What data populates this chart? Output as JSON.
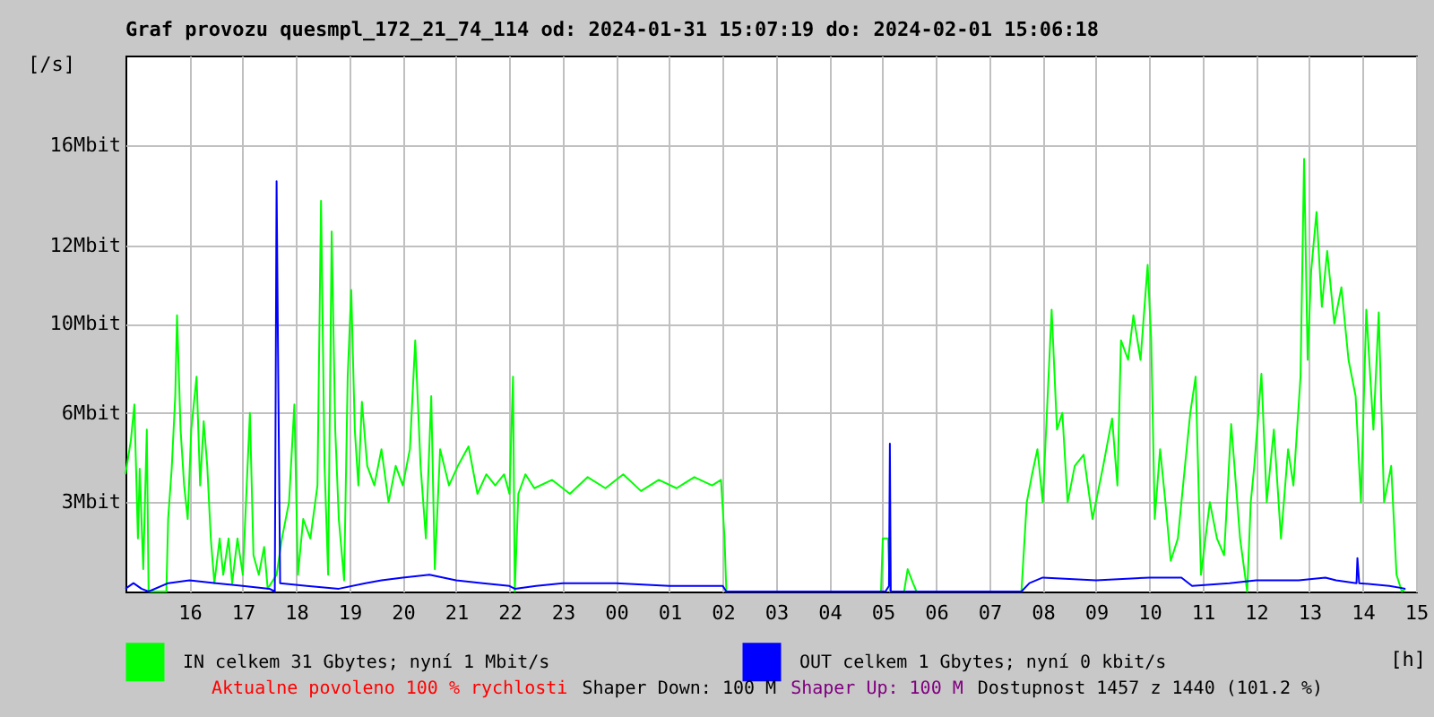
{
  "chart_data": {
    "type": "line",
    "title": "Graf provozu quesmpl_172_21_74_114 od: 2024-01-31 15:07:19 do: 2024-02-01 15:06:18",
    "xlabel": "[h]",
    "ylabel": "[/s]",
    "xlim": [
      "2024-01-31T14:48",
      "2024-02-01T15:00"
    ],
    "xticks": [
      {
        "value": "2024-01-31T16:00",
        "label": "16"
      },
      {
        "value": "2024-01-31T17:00",
        "label": "17"
      },
      {
        "value": "2024-01-31T18:00",
        "label": "18"
      },
      {
        "value": "2024-01-31T19:00",
        "label": "19"
      },
      {
        "value": "2024-01-31T20:00",
        "label": "20"
      },
      {
        "value": "2024-01-31T21:00",
        "label": "21"
      },
      {
        "value": "2024-01-31T22:00",
        "label": "22"
      },
      {
        "value": "2024-01-31T23:00",
        "label": "23"
      },
      {
        "value": "2024-02-01T00:00",
        "label": "00"
      },
      {
        "value": "2024-02-01T01:00",
        "label": "01"
      },
      {
        "value": "2024-02-01T02:00",
        "label": "02"
      },
      {
        "value": "2024-02-01T03:00",
        "label": "03"
      },
      {
        "value": "2024-02-01T04:00",
        "label": "04"
      },
      {
        "value": "2024-02-01T05:00",
        "label": "05"
      },
      {
        "value": "2024-02-01T06:00",
        "label": "06"
      },
      {
        "value": "2024-02-01T07:00",
        "label": "07"
      },
      {
        "value": "2024-02-01T08:00",
        "label": "08"
      },
      {
        "value": "2024-02-01T09:00",
        "label": "09"
      },
      {
        "value": "2024-02-01T10:00",
        "label": "10"
      },
      {
        "value": "2024-02-01T11:00",
        "label": "11"
      },
      {
        "value": "2024-02-01T12:00",
        "label": "12"
      },
      {
        "value": "2024-02-01T13:00",
        "label": "13"
      },
      {
        "value": "2024-02-01T14:00",
        "label": "14"
      },
      {
        "value": "2024-02-01T15:00",
        "label": "15"
      }
    ],
    "ylim": [
      0,
      19.2
    ],
    "yticks": [
      {
        "value": 3.2,
        "label": "3Mbit"
      },
      {
        "value": 6.4,
        "label": "6Mbit"
      },
      {
        "value": 9.6,
        "label": "10Mbit"
      },
      {
        "value": 12.4,
        "label": "12Mbit"
      },
      {
        "value": 16,
        "label": "16Mbit"
      }
    ],
    "grid": true,
    "legend": "bottom",
    "annotations": [
      "Aktualne povoleno 100 % rychlosti",
      "Shaper Down: 100 M",
      "Shaper Up: 100 M",
      "Dostupnost 1457 z 1440 (101.2 %)"
    ],
    "series": [
      {
        "name": "IN celkem 31 Gbytes; nyní 1 Mbit/s",
        "color": "#00ff00",
        "x": [
          "2024-01-31T14:48",
          "2024-01-31T14:54",
          "2024-01-31T14:58",
          "2024-01-31T15:02",
          "2024-01-31T15:04",
          "2024-01-31T15:08",
          "2024-01-31T15:12",
          "2024-01-31T15:14",
          "2024-01-31T15:34",
          "2024-01-31T15:36",
          "2024-01-31T15:40",
          "2024-01-31T15:44",
          "2024-01-31T15:46",
          "2024-01-31T15:50",
          "2024-01-31T15:54",
          "2024-01-31T15:58",
          "2024-01-31T16:02",
          "2024-01-31T16:08",
          "2024-01-31T16:12",
          "2024-01-31T16:16",
          "2024-01-31T16:20",
          "2024-01-31T16:24",
          "2024-01-31T16:28",
          "2024-01-31T16:34",
          "2024-01-31T16:38",
          "2024-01-31T16:44",
          "2024-01-31T16:48",
          "2024-01-31T16:54",
          "2024-01-31T17:00",
          "2024-01-31T17:08",
          "2024-01-31T17:12",
          "2024-01-31T17:18",
          "2024-01-31T17:24",
          "2024-01-31T17:28",
          "2024-01-31T17:38",
          "2024-01-31T17:44",
          "2024-01-31T17:52",
          "2024-01-31T17:58",
          "2024-01-31T18:02",
          "2024-01-31T18:08",
          "2024-01-31T18:16",
          "2024-01-31T18:24",
          "2024-01-31T18:28",
          "2024-01-31T18:32",
          "2024-01-31T18:36",
          "2024-01-31T18:40",
          "2024-01-31T18:44",
          "2024-01-31T18:48",
          "2024-01-31T18:54",
          "2024-01-31T18:58",
          "2024-01-31T19:02",
          "2024-01-31T19:06",
          "2024-01-31T19:10",
          "2024-01-31T19:14",
          "2024-01-31T19:20",
          "2024-01-31T19:28",
          "2024-01-31T19:36",
          "2024-01-31T19:44",
          "2024-01-31T19:52",
          "2024-01-31T20:00",
          "2024-01-31T20:08",
          "2024-01-31T20:14",
          "2024-01-31T20:20",
          "2024-01-31T20:26",
          "2024-01-31T20:32",
          "2024-01-31T20:36",
          "2024-01-31T20:42",
          "2024-01-31T20:52",
          "2024-01-31T21:02",
          "2024-01-31T21:14",
          "2024-01-31T21:24",
          "2024-01-31T21:34",
          "2024-01-31T21:44",
          "2024-01-31T21:54",
          "2024-01-31T22:00",
          "2024-01-31T22:04",
          "2024-01-31T22:06",
          "2024-01-31T22:10",
          "2024-01-31T22:18",
          "2024-01-31T22:28",
          "2024-01-31T22:48",
          "2024-01-31T23:08",
          "2024-01-31T23:28",
          "2024-01-31T23:48",
          "2024-02-01T00:08",
          "2024-02-01T00:28",
          "2024-02-01T00:48",
          "2024-02-01T01:08",
          "2024-02-01T01:28",
          "2024-02-01T01:48",
          "2024-02-01T01:58",
          "2024-02-01T02:02",
          "2024-02-01T02:04",
          "2024-02-01T04:58",
          "2024-02-01T05:00",
          "2024-02-01T05:06",
          "2024-02-01T05:08",
          "2024-02-01T05:24",
          "2024-02-01T05:28",
          "2024-02-01T05:34",
          "2024-02-01T05:38",
          "2024-02-01T07:36",
          "2024-02-01T07:42",
          "2024-02-01T07:48",
          "2024-02-01T07:54",
          "2024-02-01T08:00",
          "2024-02-01T08:10",
          "2024-02-01T08:16",
          "2024-02-01T08:22",
          "2024-02-01T08:28",
          "2024-02-01T08:36",
          "2024-02-01T08:46",
          "2024-02-01T08:56",
          "2024-02-01T09:08",
          "2024-02-01T09:18",
          "2024-02-01T09:24",
          "2024-02-01T09:28",
          "2024-02-01T09:36",
          "2024-02-01T09:42",
          "2024-02-01T09:50",
          "2024-02-01T09:58",
          "2024-02-01T10:02",
          "2024-02-01T10:06",
          "2024-02-01T10:12",
          "2024-02-01T10:18",
          "2024-02-01T10:24",
          "2024-02-01T10:32",
          "2024-02-01T10:40",
          "2024-02-01T10:46",
          "2024-02-01T10:52",
          "2024-02-01T10:58",
          "2024-02-01T11:08",
          "2024-02-01T11:16",
          "2024-02-01T11:24",
          "2024-02-01T11:32",
          "2024-02-01T11:42",
          "2024-02-01T11:50",
          "2024-02-01T11:54",
          "2024-02-01T11:58",
          "2024-02-01T12:06",
          "2024-02-01T12:12",
          "2024-02-01T12:20",
          "2024-02-01T12:28",
          "2024-02-01T12:36",
          "2024-02-01T12:42",
          "2024-02-01T12:50",
          "2024-02-01T12:54",
          "2024-02-01T12:58",
          "2024-02-01T13:02",
          "2024-02-01T13:08",
          "2024-02-01T13:14",
          "2024-02-01T13:20",
          "2024-02-01T13:28",
          "2024-02-01T13:36",
          "2024-02-01T13:44",
          "2024-02-01T13:52",
          "2024-02-01T13:58",
          "2024-02-01T14:04",
          "2024-02-01T14:12",
          "2024-02-01T14:18",
          "2024-02-01T14:24",
          "2024-02-01T14:32",
          "2024-02-01T14:38",
          "2024-02-01T14:44",
          "2024-02-01T14:48"
        ],
        "values": [
          4.2,
          5.4,
          6.7,
          1.9,
          4.4,
          0.8,
          5.8,
          0,
          0,
          2.6,
          4.4,
          7.0,
          9.9,
          5.8,
          3.8,
          2.6,
          5.8,
          7.7,
          3.8,
          6.1,
          4.5,
          1.9,
          0.3,
          1.9,
          0.6,
          1.9,
          0.3,
          1.9,
          0.6,
          6.4,
          1.3,
          0.6,
          1.6,
          0.1,
          0.6,
          1.9,
          3.2,
          6.7,
          0.6,
          2.6,
          1.9,
          3.8,
          14.0,
          4.5,
          0.6,
          12.9,
          5.8,
          2.6,
          0.4,
          7.7,
          10.8,
          5.8,
          3.8,
          6.8,
          4.5,
          3.8,
          5.1,
          3.2,
          4.5,
          3.8,
          5.1,
          9.0,
          4.5,
          1.9,
          7.0,
          0.8,
          5.1,
          3.8,
          4.5,
          5.2,
          3.5,
          4.2,
          3.8,
          4.2,
          3.5,
          7.7,
          0,
          3.5,
          4.2,
          3.7,
          4.0,
          3.5,
          4.1,
          3.7,
          4.2,
          3.6,
          4.0,
          3.7,
          4.1,
          3.8,
          4.0,
          1.9,
          0,
          0,
          1.9,
          1.9,
          0,
          0,
          0.8,
          0.3,
          0,
          0,
          3.2,
          4.2,
          5.1,
          3.2,
          10.1,
          5.8,
          6.4,
          3.2,
          4.5,
          4.9,
          2.6,
          4.5,
          6.2,
          3.8,
          9.0,
          8.3,
          9.9,
          8.3,
          11.7,
          9.0,
          2.6,
          5.1,
          3.2,
          1.1,
          1.9,
          4.5,
          6.4,
          7.7,
          0.6,
          3.2,
          1.9,
          1.3,
          6.0,
          1.9,
          0,
          3.2,
          4.5,
          7.8,
          3.2,
          5.8,
          1.9,
          5.1,
          3.8,
          7.7,
          15.5,
          8.3,
          11.5,
          13.6,
          10.2,
          12.2,
          9.6,
          10.9,
          8.3,
          7.0,
          3.2,
          10.1,
          5.8,
          10.0,
          3.2,
          4.5,
          0.6,
          0,
          0.1
        ]
      },
      {
        "name": "OUT celkem 1 Gbytes; nyní 0 kbit/s",
        "color": "#0000ff",
        "x": [
          "2024-01-31T14:48",
          "2024-01-31T14:57",
          "2024-01-31T15:06",
          "2024-01-31T15:14",
          "2024-01-31T15:36",
          "2024-01-31T16:00",
          "2024-01-31T16:30",
          "2024-01-31T17:00",
          "2024-01-31T17:30",
          "2024-01-31T17:36",
          "2024-01-31T17:38",
          "2024-01-31T17:40",
          "2024-01-31T17:42",
          "2024-01-31T18:12",
          "2024-01-31T18:48",
          "2024-01-31T19:18",
          "2024-01-31T19:36",
          "2024-01-31T20:00",
          "2024-01-31T20:30",
          "2024-01-31T21:00",
          "2024-01-31T21:30",
          "2024-01-31T22:00",
          "2024-01-31T22:06",
          "2024-01-31T22:30",
          "2024-01-31T23:00",
          "2024-02-01T00:00",
          "2024-02-01T01:00",
          "2024-02-01T02:00",
          "2024-02-01T02:04",
          "2024-02-01T05:03",
          "2024-02-01T05:07",
          "2024-02-01T05:08",
          "2024-02-01T05:09",
          "2024-02-01T07:36",
          "2024-02-01T07:45",
          "2024-02-01T08:00",
          "2024-02-01T09:00",
          "2024-02-01T10:00",
          "2024-02-01T10:36",
          "2024-02-01T10:48",
          "2024-02-01T11:30",
          "2024-02-01T12:00",
          "2024-02-01T12:48",
          "2024-02-01T13:18",
          "2024-02-01T13:30",
          "2024-02-01T13:53",
          "2024-02-01T13:54",
          "2024-02-01T13:56",
          "2024-02-01T14:30",
          "2024-02-01T14:48"
        ],
        "values": [
          0.1,
          0.3,
          0.1,
          0,
          0.3,
          0.4,
          0.3,
          0.2,
          0.1,
          0,
          14.7,
          7.2,
          0.3,
          0.2,
          0.1,
          0.3,
          0.4,
          0.5,
          0.6,
          0.4,
          0.3,
          0.2,
          0.1,
          0.2,
          0.3,
          0.3,
          0.2,
          0.2,
          0,
          0,
          0.2,
          5.3,
          0,
          0,
          0.3,
          0.5,
          0.4,
          0.5,
          0.5,
          0.2,
          0.3,
          0.4,
          0.4,
          0.5,
          0.4,
          0.3,
          1.2,
          0.3,
          0.2,
          0.1
        ]
      }
    ]
  }
}
